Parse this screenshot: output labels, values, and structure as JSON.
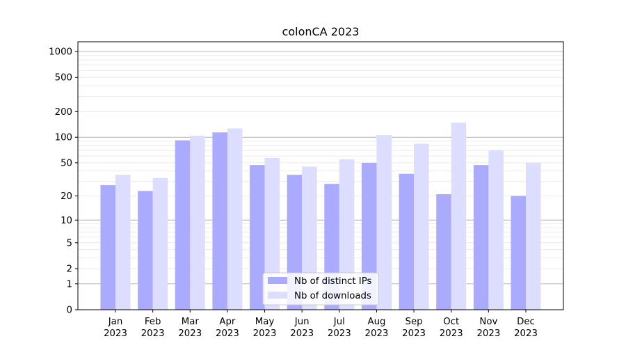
{
  "chart_data": {
    "type": "bar",
    "title": "colonCA 2023",
    "xlabel": "",
    "ylabel": "",
    "y_scale": "symlog",
    "y_ticks": [
      0,
      1,
      2,
      5,
      10,
      20,
      50,
      100,
      200,
      500,
      1000
    ],
    "y_tick_labels": [
      "0",
      "1",
      "2",
      "5",
      "10",
      "20",
      "50",
      "100",
      "200",
      "500",
      "1000"
    ],
    "ylim": [
      0,
      1300
    ],
    "grid": true,
    "legend_position": "lower center",
    "categories": [
      [
        "Jan",
        "2023"
      ],
      [
        "Feb",
        "2023"
      ],
      [
        "Mar",
        "2023"
      ],
      [
        "Apr",
        "2023"
      ],
      [
        "May",
        "2023"
      ],
      [
        "Jun",
        "2023"
      ],
      [
        "Jul",
        "2023"
      ],
      [
        "Aug",
        "2023"
      ],
      [
        "Sep",
        "2023"
      ],
      [
        "Oct",
        "2023"
      ],
      [
        "Nov",
        "2023"
      ],
      [
        "Dec",
        "2023"
      ]
    ],
    "series": [
      {
        "name": "Nb of distinct IPs",
        "color": "#aaaaff",
        "values": [
          27,
          23,
          92,
          114,
          47,
          36,
          28,
          50,
          37,
          21,
          47,
          20
        ]
      },
      {
        "name": "Nb of downloads",
        "color": "#ddddff",
        "values": [
          36,
          33,
          104,
          127,
          57,
          45,
          55,
          106,
          84,
          148,
          70,
          50
        ]
      }
    ]
  }
}
